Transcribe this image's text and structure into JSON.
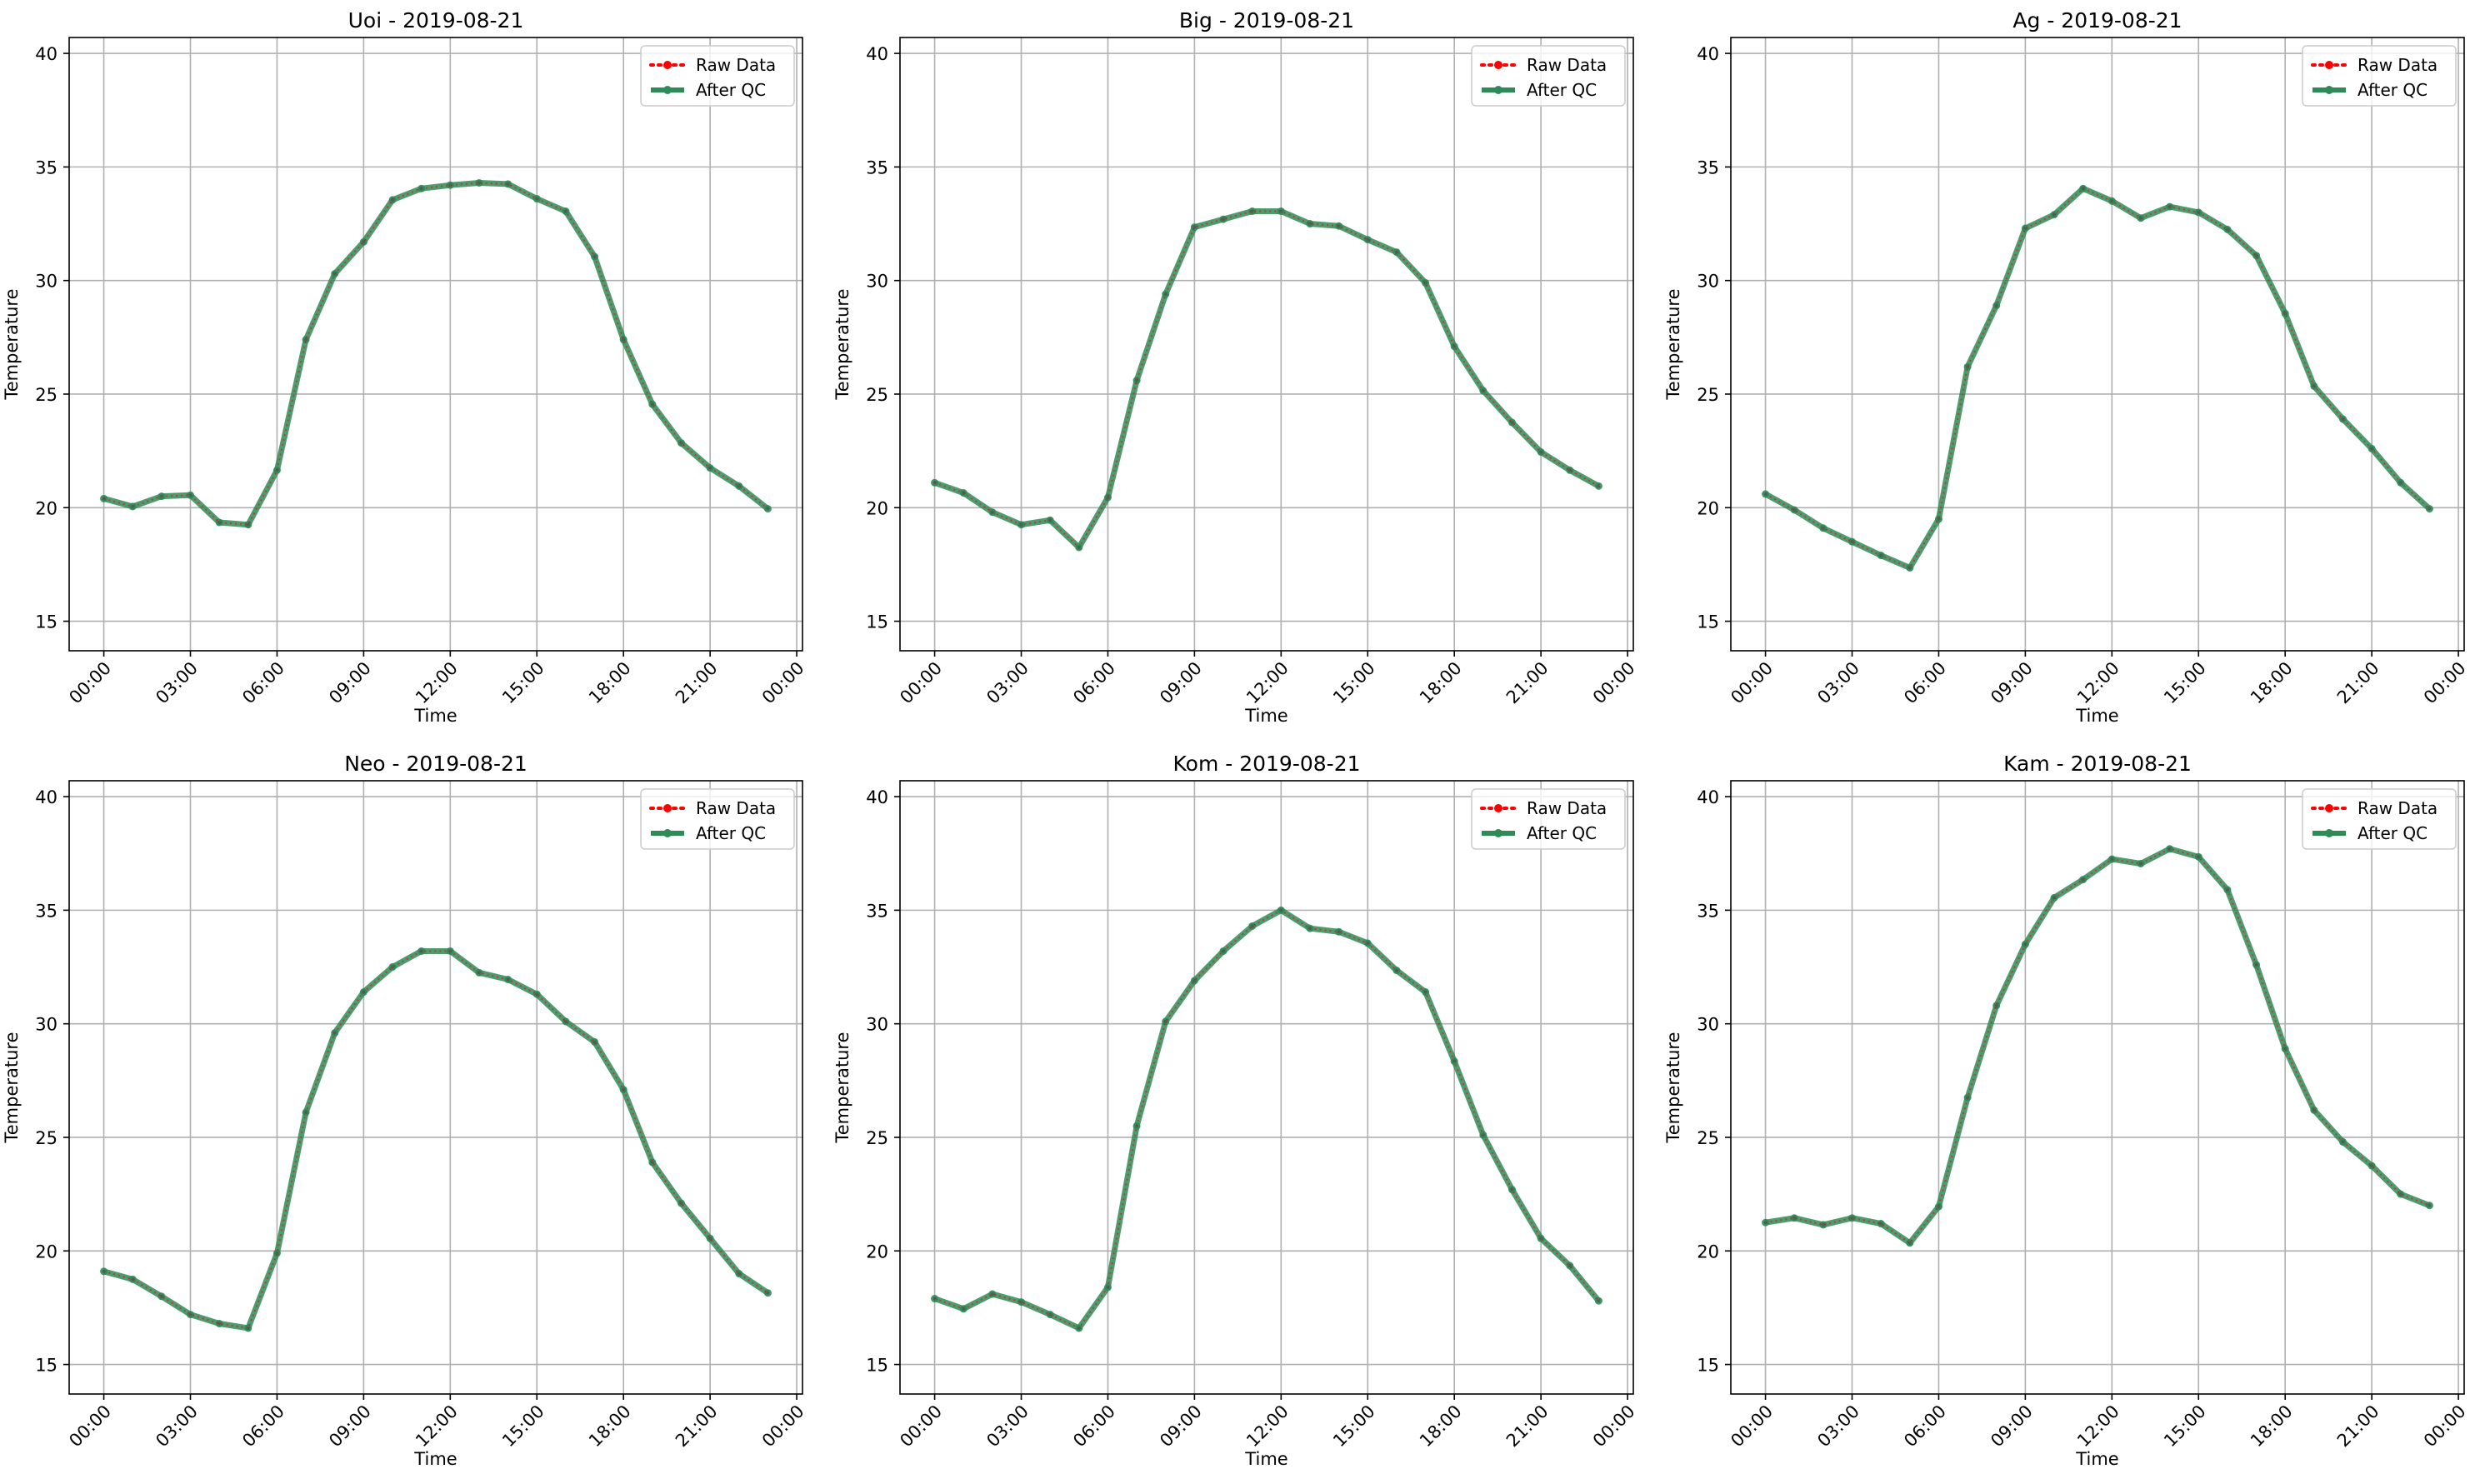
{
  "figure": {
    "colors": {
      "raw": "#ff0000",
      "qc": "#2e8b57",
      "grid": "#b0b0b0",
      "axis": "#000000"
    }
  },
  "chart_data": [
    {
      "type": "line",
      "title": "Uoi - 2019-08-21",
      "xlabel": "Time",
      "ylabel": "Temperature",
      "xticks": [
        "00:00",
        "03:00",
        "06:00",
        "09:00",
        "12:00",
        "15:00",
        "18:00",
        "21:00",
        "00:00"
      ],
      "yticks": [
        15,
        20,
        25,
        30,
        35,
        40
      ],
      "xlim": [
        -1.2,
        24.2
      ],
      "ylim": [
        13.7,
        40.7
      ],
      "grid": true,
      "legend": "top-right",
      "x": [
        0,
        1,
        2,
        3,
        4,
        5,
        6,
        7,
        8,
        9,
        10,
        11,
        12,
        13,
        14,
        15,
        16,
        17,
        18,
        19,
        20,
        21,
        22,
        23
      ],
      "series": [
        {
          "name": "Raw Data",
          "style": "dotted",
          "values": [
            20.4,
            20.05,
            20.5,
            20.55,
            19.35,
            19.25,
            21.65,
            27.4,
            30.3,
            31.7,
            33.55,
            34.05,
            34.2,
            34.3,
            34.25,
            33.6,
            33.05,
            31.05,
            27.4,
            24.55,
            22.85,
            21.75,
            20.95,
            19.95
          ]
        },
        {
          "name": "After QC",
          "style": "solid",
          "values": [
            20.4,
            20.05,
            20.5,
            20.55,
            19.35,
            19.25,
            21.65,
            27.4,
            30.3,
            31.7,
            33.55,
            34.05,
            34.2,
            34.3,
            34.25,
            33.6,
            33.05,
            31.05,
            27.4,
            24.55,
            22.85,
            21.75,
            20.95,
            19.95
          ]
        }
      ]
    },
    {
      "type": "line",
      "title": "Big - 2019-08-21",
      "xlabel": "Time",
      "ylabel": "Temperature",
      "xticks": [
        "00:00",
        "03:00",
        "06:00",
        "09:00",
        "12:00",
        "15:00",
        "18:00",
        "21:00",
        "00:00"
      ],
      "yticks": [
        15,
        20,
        25,
        30,
        35,
        40
      ],
      "xlim": [
        -1.2,
        24.2
      ],
      "ylim": [
        13.7,
        40.7
      ],
      "grid": true,
      "legend": "top-right",
      "x": [
        0,
        1,
        2,
        3,
        4,
        5,
        6,
        7,
        8,
        9,
        10,
        11,
        12,
        13,
        14,
        15,
        16,
        17,
        18,
        19,
        20,
        21,
        22,
        23
      ],
      "series": [
        {
          "name": "Raw Data",
          "style": "dotted",
          "values": [
            21.1,
            20.65,
            19.8,
            19.25,
            19.45,
            18.25,
            20.45,
            25.6,
            29.4,
            32.35,
            32.7,
            33.05,
            33.05,
            32.5,
            32.4,
            31.8,
            31.25,
            29.9,
            27.1,
            25.15,
            23.75,
            22.45,
            21.65,
            20.95
          ]
        },
        {
          "name": "After QC",
          "style": "solid",
          "values": [
            21.1,
            20.65,
            19.8,
            19.25,
            19.45,
            18.25,
            20.45,
            25.6,
            29.4,
            32.35,
            32.7,
            33.05,
            33.05,
            32.5,
            32.4,
            31.8,
            31.25,
            29.9,
            27.1,
            25.15,
            23.75,
            22.45,
            21.65,
            20.95
          ]
        }
      ]
    },
    {
      "type": "line",
      "title": "Ag - 2019-08-21",
      "xlabel": "Time",
      "ylabel": "Temperature",
      "xticks": [
        "00:00",
        "03:00",
        "06:00",
        "09:00",
        "12:00",
        "15:00",
        "18:00",
        "21:00",
        "00:00"
      ],
      "yticks": [
        15,
        20,
        25,
        30,
        35,
        40
      ],
      "xlim": [
        -1.2,
        24.2
      ],
      "ylim": [
        13.7,
        40.7
      ],
      "grid": true,
      "legend": "top-right",
      "x": [
        0,
        1,
        2,
        3,
        4,
        5,
        6,
        7,
        8,
        9,
        10,
        11,
        12,
        13,
        14,
        15,
        16,
        17,
        18,
        19,
        20,
        21,
        22,
        23
      ],
      "series": [
        {
          "name": "Raw Data",
          "style": "dotted",
          "values": [
            20.6,
            19.9,
            19.1,
            18.5,
            17.9,
            17.35,
            19.5,
            26.2,
            28.9,
            32.3,
            32.9,
            34.05,
            33.5,
            32.75,
            33.25,
            33.0,
            32.25,
            31.1,
            28.55,
            25.35,
            23.9,
            22.6,
            21.1,
            19.95
          ]
        },
        {
          "name": "After QC",
          "style": "solid",
          "values": [
            20.6,
            19.9,
            19.1,
            18.5,
            17.9,
            17.35,
            19.5,
            26.2,
            28.9,
            32.3,
            32.9,
            34.05,
            33.5,
            32.75,
            33.25,
            33.0,
            32.25,
            31.1,
            28.55,
            25.35,
            23.9,
            22.6,
            21.1,
            19.95
          ]
        }
      ]
    },
    {
      "type": "line",
      "title": "Neo - 2019-08-21",
      "xlabel": "Time",
      "ylabel": "Temperature",
      "xticks": [
        "00:00",
        "03:00",
        "06:00",
        "09:00",
        "12:00",
        "15:00",
        "18:00",
        "21:00",
        "00:00"
      ],
      "yticks": [
        15,
        20,
        25,
        30,
        35,
        40
      ],
      "xlim": [
        -1.2,
        24.2
      ],
      "ylim": [
        13.7,
        40.7
      ],
      "grid": true,
      "legend": "top-right",
      "x": [
        0,
        1,
        2,
        3,
        4,
        5,
        6,
        7,
        8,
        9,
        10,
        11,
        12,
        13,
        14,
        15,
        16,
        17,
        18,
        19,
        20,
        21,
        22,
        23
      ],
      "series": [
        {
          "name": "Raw Data",
          "style": "dotted",
          "values": [
            19.1,
            18.75,
            18.0,
            17.2,
            16.8,
            16.6,
            19.9,
            26.1,
            29.6,
            31.4,
            32.5,
            33.2,
            33.2,
            32.25,
            31.95,
            31.3,
            30.1,
            29.2,
            27.1,
            23.9,
            22.1,
            20.55,
            19.0,
            18.15
          ]
        },
        {
          "name": "After QC",
          "style": "solid",
          "values": [
            19.1,
            18.75,
            18.0,
            17.2,
            16.8,
            16.6,
            19.9,
            26.1,
            29.6,
            31.4,
            32.5,
            33.2,
            33.2,
            32.25,
            31.95,
            31.3,
            30.1,
            29.2,
            27.1,
            23.9,
            22.1,
            20.55,
            19.0,
            18.15
          ]
        }
      ]
    },
    {
      "type": "line",
      "title": "Kom - 2019-08-21",
      "xlabel": "Time",
      "ylabel": "Temperature",
      "xticks": [
        "00:00",
        "03:00",
        "06:00",
        "09:00",
        "12:00",
        "15:00",
        "18:00",
        "21:00",
        "00:00"
      ],
      "yticks": [
        15,
        20,
        25,
        30,
        35,
        40
      ],
      "xlim": [
        -1.2,
        24.2
      ],
      "ylim": [
        13.7,
        40.7
      ],
      "grid": true,
      "legend": "top-right",
      "x": [
        0,
        1,
        2,
        3,
        4,
        5,
        6,
        7,
        8,
        9,
        10,
        11,
        12,
        13,
        14,
        15,
        16,
        17,
        18,
        19,
        20,
        21,
        22,
        23
      ],
      "series": [
        {
          "name": "Raw Data",
          "style": "dotted",
          "values": [
            17.9,
            17.45,
            18.1,
            17.75,
            17.2,
            16.6,
            18.4,
            25.5,
            30.1,
            31.9,
            33.2,
            34.3,
            35.0,
            34.2,
            34.05,
            33.55,
            32.35,
            31.4,
            28.35,
            25.1,
            22.7,
            20.55,
            19.35,
            17.8
          ]
        },
        {
          "name": "After QC",
          "style": "solid",
          "values": [
            17.9,
            17.45,
            18.1,
            17.75,
            17.2,
            16.6,
            18.4,
            25.5,
            30.1,
            31.9,
            33.2,
            34.3,
            35.0,
            34.2,
            34.05,
            33.55,
            32.35,
            31.4,
            28.35,
            25.1,
            22.7,
            20.55,
            19.35,
            17.8
          ]
        }
      ]
    },
    {
      "type": "line",
      "title": "Kam - 2019-08-21",
      "xlabel": "Time",
      "ylabel": "Temperature",
      "xticks": [
        "00:00",
        "03:00",
        "06:00",
        "09:00",
        "12:00",
        "15:00",
        "18:00",
        "21:00",
        "00:00"
      ],
      "yticks": [
        15,
        20,
        25,
        30,
        35,
        40
      ],
      "xlim": [
        -1.2,
        24.2
      ],
      "ylim": [
        13.7,
        40.7
      ],
      "grid": true,
      "legend": "top-right",
      "x": [
        0,
        1,
        2,
        3,
        4,
        5,
        6,
        7,
        8,
        9,
        10,
        11,
        12,
        13,
        14,
        15,
        16,
        17,
        18,
        19,
        20,
        21,
        22,
        23
      ],
      "series": [
        {
          "name": "Raw Data",
          "style": "dotted",
          "values": [
            21.25,
            21.45,
            21.15,
            21.45,
            21.2,
            20.35,
            21.95,
            26.75,
            30.8,
            33.5,
            35.55,
            36.35,
            37.25,
            37.05,
            37.7,
            37.35,
            35.9,
            32.6,
            28.9,
            26.2,
            24.8,
            23.75,
            22.5,
            22.0
          ]
        },
        {
          "name": "After QC",
          "style": "solid",
          "values": [
            21.25,
            21.45,
            21.15,
            21.45,
            21.2,
            20.35,
            21.95,
            26.75,
            30.8,
            33.5,
            35.55,
            36.35,
            37.25,
            37.05,
            37.7,
            37.35,
            35.9,
            32.6,
            28.9,
            26.2,
            24.8,
            23.75,
            22.5,
            22.0
          ]
        }
      ]
    }
  ]
}
